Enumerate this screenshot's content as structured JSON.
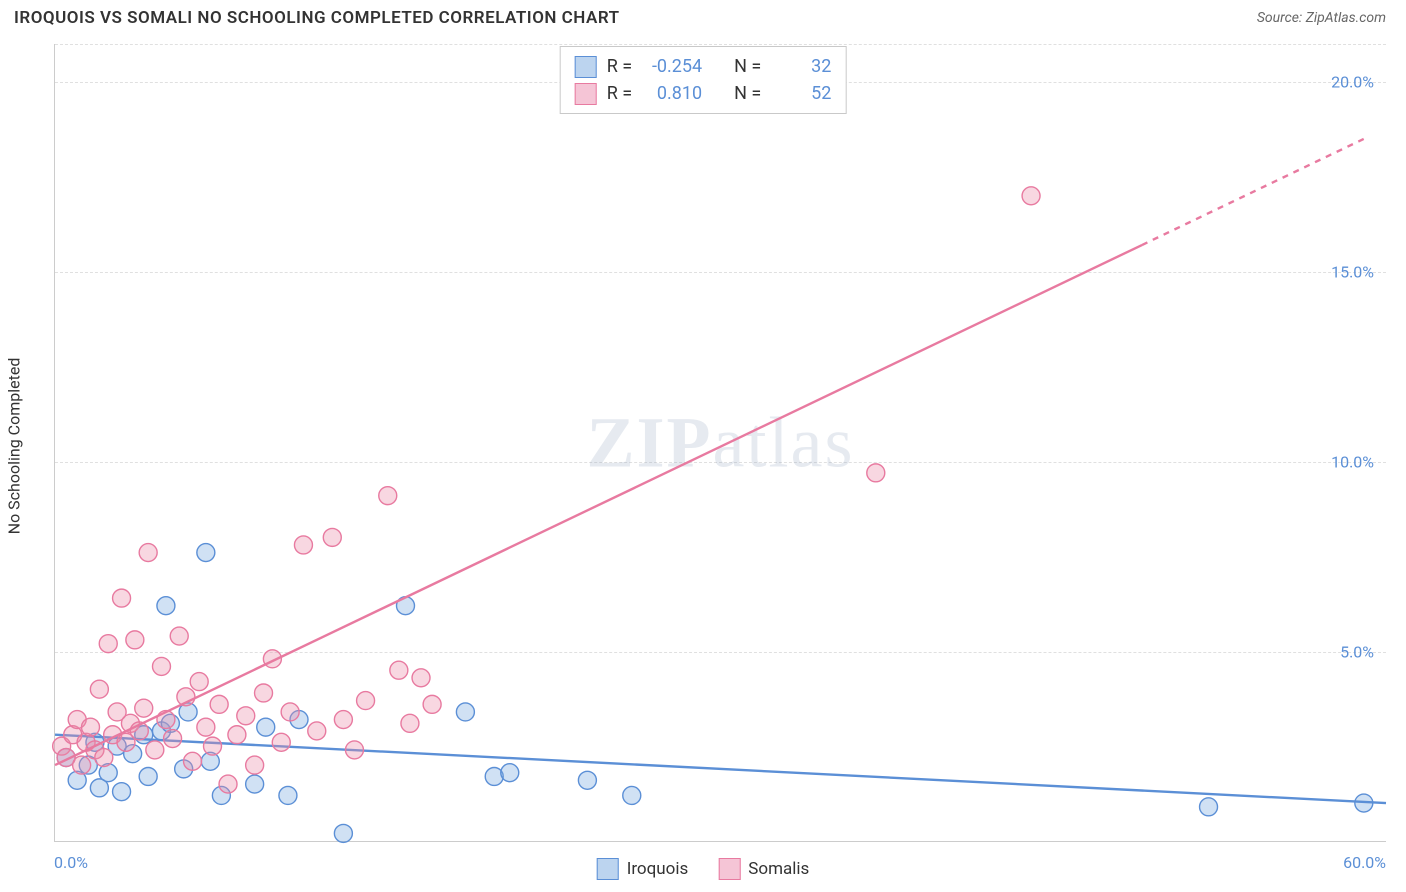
{
  "title": "IROQUOIS VS SOMALI NO SCHOOLING COMPLETED CORRELATION CHART",
  "source": "Source: ZipAtlas.com",
  "yaxis_title": "No Schooling Completed",
  "watermark": "ZIPatlas",
  "chart": {
    "type": "scatter",
    "xlim": [
      0,
      60
    ],
    "ylim": [
      0,
      21
    ],
    "x_tick_min_label": "0.0%",
    "x_tick_max_label": "60.0%",
    "y_ticks": [
      5,
      10,
      15,
      20
    ],
    "y_tick_labels": [
      "5.0%",
      "10.0%",
      "15.0%",
      "20.0%"
    ],
    "grid_color": "#e0e0e0",
    "background": "#ffffff",
    "marker_radius": 9,
    "marker_stroke_width": 1.4,
    "trend_line_width": 2.4,
    "series": [
      {
        "name": "Iroquois",
        "color_fill": "rgba(120, 168, 224, 0.35)",
        "color_stroke": "#5b8fd6",
        "swatch_fill": "#bcd4ef",
        "swatch_border": "#5b8fd6",
        "R": "-0.254",
        "N": "32",
        "trend": {
          "x1": 0,
          "y1": 2.8,
          "x2": 60,
          "y2": 1.0,
          "dash_from_x": null
        },
        "points": [
          [
            0.5,
            2.2
          ],
          [
            1.0,
            1.6
          ],
          [
            1.5,
            2.0
          ],
          [
            1.8,
            2.6
          ],
          [
            2.0,
            1.4
          ],
          [
            2.4,
            1.8
          ],
          [
            2.8,
            2.5
          ],
          [
            3.0,
            1.3
          ],
          [
            3.5,
            2.3
          ],
          [
            4.0,
            2.8
          ],
          [
            4.2,
            1.7
          ],
          [
            4.8,
            2.9
          ],
          [
            5.0,
            6.2
          ],
          [
            5.2,
            3.1
          ],
          [
            5.8,
            1.9
          ],
          [
            6.0,
            3.4
          ],
          [
            6.8,
            7.6
          ],
          [
            7.0,
            2.1
          ],
          [
            7.5,
            1.2
          ],
          [
            9.0,
            1.5
          ],
          [
            9.5,
            3.0
          ],
          [
            10.5,
            1.2
          ],
          [
            11.0,
            3.2
          ],
          [
            13.0,
            0.2
          ],
          [
            15.8,
            6.2
          ],
          [
            18.5,
            3.4
          ],
          [
            19.8,
            1.7
          ],
          [
            20.5,
            1.8
          ],
          [
            24.0,
            1.6
          ],
          [
            26.0,
            1.2
          ],
          [
            52.0,
            0.9
          ],
          [
            59.0,
            1.0
          ]
        ]
      },
      {
        "name": "Somalis",
        "color_fill": "rgba(235, 140, 170, 0.35)",
        "color_stroke": "#e87aa0",
        "swatch_fill": "#f5c5d6",
        "swatch_border": "#e87aa0",
        "R": "0.810",
        "N": "52",
        "trend": {
          "x1": 0,
          "y1": 2.0,
          "x2": 59,
          "y2": 18.5,
          "dash_from_x": 49
        },
        "points": [
          [
            0.3,
            2.5
          ],
          [
            0.5,
            2.2
          ],
          [
            0.8,
            2.8
          ],
          [
            1.0,
            3.2
          ],
          [
            1.2,
            2.0
          ],
          [
            1.4,
            2.6
          ],
          [
            1.6,
            3.0
          ],
          [
            1.8,
            2.4
          ],
          [
            2.0,
            4.0
          ],
          [
            2.2,
            2.2
          ],
          [
            2.4,
            5.2
          ],
          [
            2.6,
            2.8
          ],
          [
            2.8,
            3.4
          ],
          [
            3.0,
            6.4
          ],
          [
            3.2,
            2.6
          ],
          [
            3.4,
            3.1
          ],
          [
            3.6,
            5.3
          ],
          [
            3.8,
            2.9
          ],
          [
            4.0,
            3.5
          ],
          [
            4.2,
            7.6
          ],
          [
            4.5,
            2.4
          ],
          [
            4.8,
            4.6
          ],
          [
            5.0,
            3.2
          ],
          [
            5.3,
            2.7
          ],
          [
            5.6,
            5.4
          ],
          [
            5.9,
            3.8
          ],
          [
            6.2,
            2.1
          ],
          [
            6.5,
            4.2
          ],
          [
            6.8,
            3.0
          ],
          [
            7.1,
            2.5
          ],
          [
            7.4,
            3.6
          ],
          [
            7.8,
            1.5
          ],
          [
            8.2,
            2.8
          ],
          [
            8.6,
            3.3
          ],
          [
            9.0,
            2.0
          ],
          [
            9.4,
            3.9
          ],
          [
            9.8,
            4.8
          ],
          [
            10.2,
            2.6
          ],
          [
            10.6,
            3.4
          ],
          [
            11.2,
            7.8
          ],
          [
            11.8,
            2.9
          ],
          [
            12.5,
            8.0
          ],
          [
            13.0,
            3.2
          ],
          [
            13.5,
            2.4
          ],
          [
            14.0,
            3.7
          ],
          [
            15.0,
            9.1
          ],
          [
            15.5,
            4.5
          ],
          [
            16.0,
            3.1
          ],
          [
            16.5,
            4.3
          ],
          [
            17.0,
            3.6
          ],
          [
            37.0,
            9.7
          ],
          [
            44.0,
            17.0
          ]
        ]
      }
    ]
  },
  "bottom_legend": [
    {
      "label": "Iroquois",
      "fill": "#bcd4ef",
      "border": "#5b8fd6"
    },
    {
      "label": "Somalis",
      "fill": "#f5c5d6",
      "border": "#e87aa0"
    }
  ]
}
